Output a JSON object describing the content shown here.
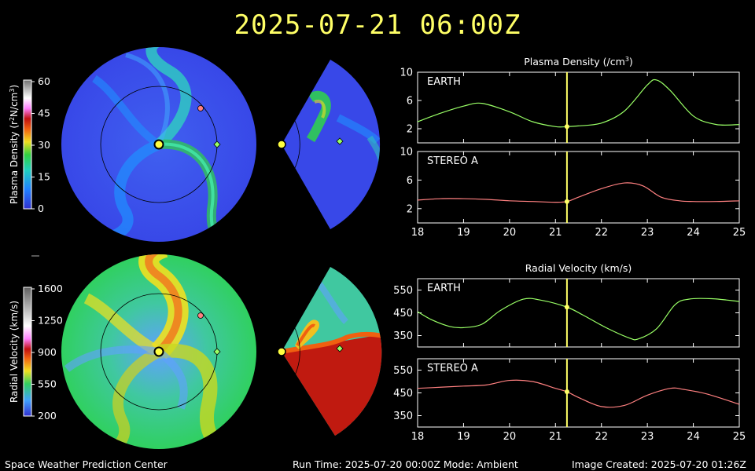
{
  "title": "2025-07-21 06:00Z",
  "colors": {
    "title": "#ffff66",
    "earth": "#99ff66",
    "stereo": "#ff8080",
    "marker": "#ffff66"
  },
  "colorbars": {
    "density": {
      "label": "Plasma Density (r²N/cm³)",
      "label_main": "Plasma Density (r",
      "label_sup": "2",
      "label_rest": "N/cm",
      "label_sup2": "3",
      "label_end": ")",
      "ticks": [
        "60",
        "45",
        "30",
        "15",
        "0"
      ]
    },
    "velocity": {
      "label": "Radial Velocity (km/s)",
      "ticks": [
        "1600",
        "1250",
        "900",
        "550",
        "200"
      ]
    }
  },
  "icons": {
    "sun": "sun-icon",
    "earth": "earth-marker-icon",
    "stereo": "stereo-a-marker-icon"
  },
  "chart_data": [
    {
      "type": "line",
      "title": "Plasma Density (/cm³)",
      "title_main": "Plasma Density (/cm",
      "title_sup": "3",
      "title_end": ")",
      "panel": "EARTH",
      "x": [
        18,
        18.5,
        19,
        19.4,
        20,
        20.5,
        21,
        21.25,
        21.5,
        22,
        22.5,
        23,
        23.2,
        23.5,
        24,
        24.5,
        25
      ],
      "y": [
        3.0,
        4.2,
        5.2,
        5.6,
        4.4,
        3.0,
        2.3,
        2.3,
        2.4,
        2.8,
        4.5,
        8.2,
        8.9,
        7.4,
        3.8,
        2.6,
        2.6
      ],
      "ylim": [
        0,
        10
      ],
      "yticks": [
        "10",
        "6",
        "2"
      ],
      "xlim": [
        18,
        25
      ]
    },
    {
      "type": "line",
      "panel": "STEREO A",
      "x": [
        18,
        18.5,
        19,
        19.5,
        20,
        20.5,
        21,
        21.25,
        21.5,
        22,
        22.5,
        22.9,
        23.3,
        23.7,
        24,
        24.5,
        25
      ],
      "y": [
        3.2,
        3.4,
        3.4,
        3.3,
        3.1,
        3.0,
        2.9,
        3.0,
        3.6,
        4.8,
        5.6,
        5.2,
        3.6,
        3.1,
        3.0,
        3.0,
        3.1
      ],
      "ylim": [
        0,
        10
      ],
      "yticks": [
        "10",
        "6",
        "2"
      ],
      "xlim": [
        18,
        25
      ],
      "xticks": [
        "18",
        "19",
        "20",
        "21",
        "22",
        "23",
        "24",
        "25"
      ]
    },
    {
      "type": "line",
      "title": "Radial Velocity (km/s)",
      "panel": "EARTH",
      "x": [
        18,
        18.3,
        18.7,
        19,
        19.4,
        19.8,
        20.3,
        20.7,
        21.25,
        21.6,
        22.1,
        22.6,
        22.8,
        23.2,
        23.6,
        23.9,
        24.4,
        25
      ],
      "y": [
        455,
        420,
        390,
        385,
        400,
        460,
        510,
        505,
        475,
        440,
        385,
        340,
        335,
        380,
        485,
        510,
        512,
        500
      ],
      "ylim": [
        300,
        600
      ],
      "yticks": [
        "550",
        "450",
        "350"
      ],
      "xlim": [
        18,
        25
      ]
    },
    {
      "type": "line",
      "panel": "STEREO A",
      "x": [
        18,
        18.5,
        19,
        19.5,
        20,
        20.5,
        21,
        21.25,
        21.5,
        22,
        22.5,
        23,
        23.5,
        23.8,
        24.3,
        25
      ],
      "y": [
        470,
        475,
        480,
        485,
        505,
        500,
        470,
        455,
        430,
        390,
        395,
        440,
        470,
        465,
        445,
        400
      ],
      "ylim": [
        300,
        600
      ],
      "yticks": [
        "550",
        "450",
        "350"
      ],
      "xlim": [
        18,
        25
      ],
      "xticks": [
        "18",
        "19",
        "20",
        "21",
        "22",
        "23",
        "24",
        "25"
      ]
    }
  ],
  "current_time": 21.25,
  "footer": {
    "left": "Space Weather Prediction Center",
    "center": "Run Time: 2025-07-20 00:00Z  Mode: Ambient",
    "right": "Image Created: 2025-07-20 01:26Z"
  }
}
